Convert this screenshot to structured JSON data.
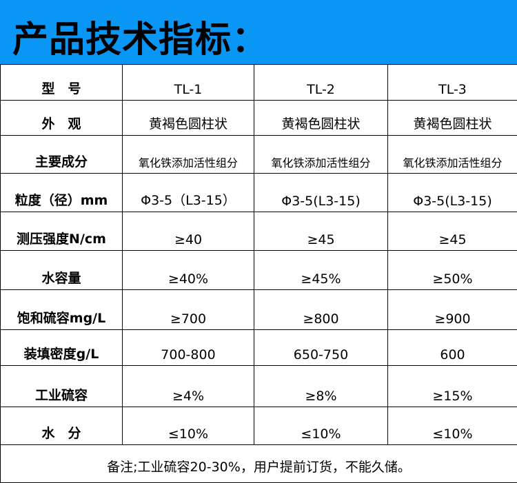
{
  "title": "产品技术指标：",
  "columns": [
    "TL-1",
    "TL-2",
    "TL-3"
  ],
  "header_label": "型　号",
  "rows": [
    {
      "label": "外　观",
      "values": [
        "黄褐色圆柱状",
        "黄褐色圆柱状",
        "黄褐色圆柱状"
      ]
    },
    {
      "label": "主要成分",
      "values": [
        "氧化铁添加活性组分",
        "氧化铁添加活性组分",
        "氧化铁添加活性组分"
      ],
      "small": true
    },
    {
      "label": "粒度（径）mm",
      "values": [
        "Φ3-5（L3-15）",
        "Φ3-5(L3-15)",
        "Φ3-5(L3-15)"
      ]
    },
    {
      "label": "测压强度N/cm",
      "values": [
        "≥40",
        "≥45",
        "≥45"
      ]
    },
    {
      "label": "水容量",
      "values": [
        "≥40%",
        "≥45%",
        "≥50%"
      ]
    },
    {
      "label": "饱和硫容mg/L",
      "values": [
        "≥700",
        "≥800",
        "≥900"
      ]
    },
    {
      "label": "装填密度g/L",
      "values": [
        "700-800",
        "650-750",
        "600"
      ]
    },
    {
      "label": "工业硫容",
      "values": [
        "≥4%",
        "≥8%",
        "≥15%"
      ]
    },
    {
      "label": "水　分",
      "values": [
        "≤10%",
        "≤10%",
        "≤10%"
      ]
    }
  ],
  "footnote": "备注;工业硫容20-30%，用户提前订货，不能久储。",
  "colors": {
    "banner": "#0a96f5",
    "border": "#000000"
  }
}
